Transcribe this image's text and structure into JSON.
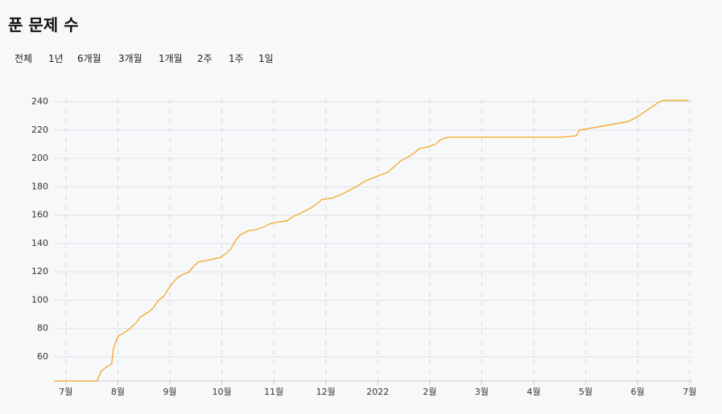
{
  "header": {
    "title": "푼 문제 수"
  },
  "filters": [
    "전체",
    "1년",
    "6개월",
    "3개월",
    "1개월",
    "2주",
    "1주",
    "1일"
  ],
  "chart_data": {
    "type": "line",
    "x": [
      -0.23,
      0.6,
      0.68,
      0.78,
      0.88,
      0.91,
      0.97,
      1.02,
      1.12,
      1.23,
      1.35,
      1.43,
      1.51,
      1.6,
      1.69,
      1.78,
      1.89,
      1.97,
      2.05,
      2.15,
      2.25,
      2.37,
      2.46,
      2.55,
      2.71,
      2.82,
      2.97,
      3.08,
      3.17,
      3.26,
      3.35,
      3.51,
      3.69,
      3.82,
      3.94,
      4.05,
      4.25,
      4.37,
      4.55,
      4.71,
      4.83,
      4.92,
      5.12,
      5.32,
      5.48,
      5.63,
      5.75,
      5.89,
      6.03,
      6.18,
      6.31,
      6.43,
      6.58,
      6.71,
      6.8,
      6.95,
      7.11,
      7.2,
      7.35,
      9.51,
      9.82,
      9.88,
      10.2,
      10.51,
      10.82,
      11.02,
      11.14,
      11.26,
      11.38,
      11.48,
      11.97
    ],
    "values": [
      43,
      43,
      50,
      53,
      55,
      65,
      72,
      75,
      77,
      80,
      84,
      88,
      90,
      92,
      95,
      100,
      103,
      108,
      112,
      116,
      118,
      120,
      124,
      127,
      128,
      129,
      130,
      133,
      136,
      142,
      146,
      149,
      150,
      152,
      154,
      155,
      156,
      159,
      162,
      165,
      168,
      171,
      172,
      175,
      178,
      181,
      184,
      186,
      188,
      190,
      194,
      198,
      201,
      204,
      207,
      208,
      210,
      213,
      215,
      215,
      216,
      220,
      222,
      224,
      226,
      230,
      233,
      236,
      239,
      241,
      241
    ],
    "color": "#f5a623",
    "xlim": [
      -0.23,
      12.05
    ],
    "xticks": [
      {
        "value": 0,
        "label": "7월"
      },
      {
        "value": 1,
        "label": "8월"
      },
      {
        "value": 2,
        "label": "9월"
      },
      {
        "value": 3,
        "label": "10월"
      },
      {
        "value": 4,
        "label": "11월"
      },
      {
        "value": 5,
        "label": "12월"
      },
      {
        "value": 6,
        "label": "2022"
      },
      {
        "value": 7,
        "label": "2월"
      },
      {
        "value": 8,
        "label": "3월"
      },
      {
        "value": 9,
        "label": "4월"
      },
      {
        "value": 10,
        "label": "5월"
      },
      {
        "value": 11,
        "label": "6월"
      },
      {
        "value": 12,
        "label": "7월"
      }
    ],
    "ylim": [
      43,
      242
    ],
    "yticks": [
      60,
      80,
      100,
      120,
      140,
      160,
      180,
      200,
      220,
      240
    ],
    "grid": true
  }
}
